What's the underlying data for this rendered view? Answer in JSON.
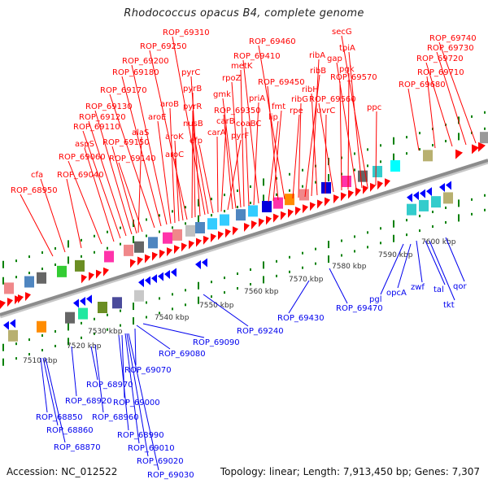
{
  "title": "Rhodococcus opacus B4, complete genome",
  "footer": {
    "accession": "Accession: NC_012522",
    "summary": "Topology: linear; Length: 7,913,450 bp; Genes: 7,307"
  },
  "colors": {
    "forward_label": "#ff0000",
    "reverse_label": "#0000ee",
    "forward_gene": "#ff0000",
    "reverse_gene": "#0000ff",
    "tick": "#008000",
    "backbone": "#8c8c8c",
    "scale_text": "#333333"
  },
  "scale": {
    "unit": "kbp",
    "labels": [
      "7510 kbp",
      "7520 kbp",
      "7530 kbp",
      "7540 kbp",
      "7550 kbp",
      "7560 kbp",
      "7570 kbp",
      "7580 kbp",
      "7590 kbp",
      "7600 kbp"
    ]
  },
  "forward_labels": [
    "ROP_68950",
    "cfa",
    "ROP_69040",
    "ROP_69060",
    "aspS",
    "ROP_69110",
    "ROP_69120",
    "ROP_69130",
    "ROP_69140",
    "ROP_69150",
    "alaS",
    "ROP_69170",
    "ROP_69180",
    "ROP_69200",
    "aroE",
    "aroB",
    "aroK",
    "aroC",
    "ROP_69250",
    "pyrR",
    "pyrB",
    "pyrC",
    "ROP_69310",
    "nusB",
    "efp",
    "carA",
    "carB",
    "pyrF",
    "ROP_69350",
    "gmk",
    "rpoZ",
    "metK",
    "coaBC",
    "priA",
    "ROP_69410",
    "lip",
    "fmt",
    "ROP_69450",
    "ROP_69460",
    "rpe",
    "ribG",
    "ribB",
    "ribA",
    "ribH",
    "uvrC",
    "ROP_69560",
    "ROP_69570",
    "pgk",
    "gap",
    "tpiA",
    "secG",
    "ppc",
    "ROP_69680",
    "ROP_69710",
    "ROP_69720",
    "ROP_69730",
    "ROP_69740"
  ],
  "reverse_labels": [
    "ROP_68850",
    "ROP_68860",
    "ROP_68870",
    "ROP_68920",
    "ROP_68960",
    "ROP_68970",
    "ROP_68990",
    "ROP_69000",
    "ROP_69010",
    "ROP_69020",
    "ROP_69030",
    "ROP_69070",
    "ROP_69080",
    "ROP_69090",
    "ROP_69240",
    "ROP_69430",
    "ROP_69470",
    "pgl",
    "opcA",
    "zwf",
    "tal",
    "tkt",
    "qor"
  ]
}
